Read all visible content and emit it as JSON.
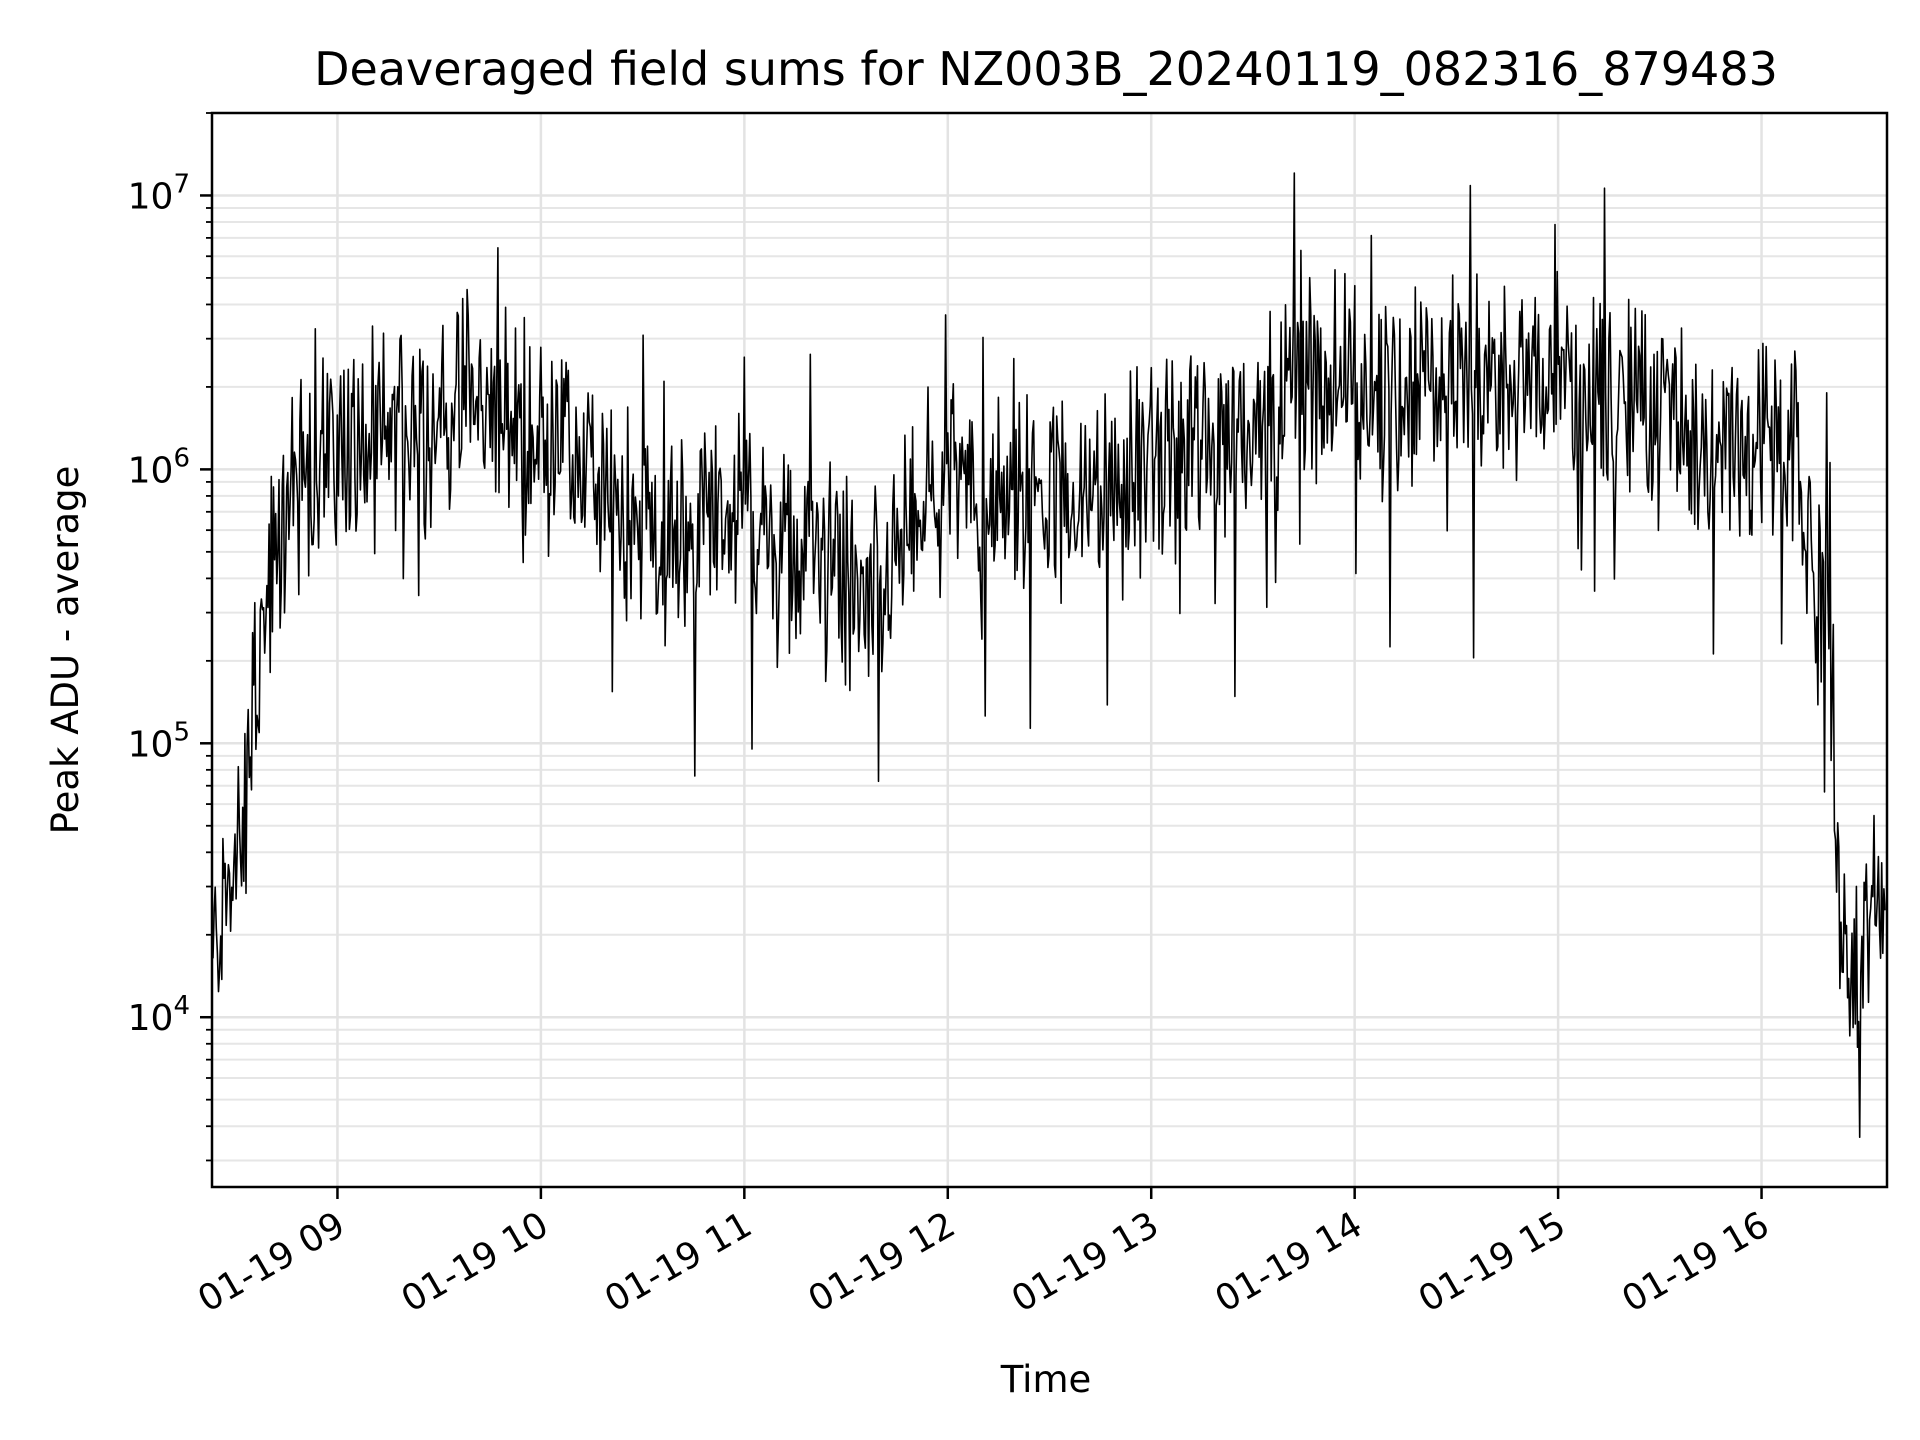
{
  "chart_data": {
    "type": "line",
    "title": "Deaveraged field sums for NZ003B_20240119_082316_879483",
    "xlabel": "Time",
    "ylabel": "Peak ADU - average",
    "y_scale": "log",
    "ylim": [
      2400,
      20000000
    ],
    "xlim": [
      "2024-01-19 08:23",
      "2024-01-19 16:37"
    ],
    "grid": "on (major and minor)",
    "line_color": "#000000",
    "x_ticks": [
      {
        "value": "2024-01-19 09:00",
        "label": "01-19 09"
      },
      {
        "value": "2024-01-19 10:00",
        "label": "01-19 10"
      },
      {
        "value": "2024-01-19 11:00",
        "label": "01-19 11"
      },
      {
        "value": "2024-01-19 12:00",
        "label": "01-19 12"
      },
      {
        "value": "2024-01-19 13:00",
        "label": "01-19 13"
      },
      {
        "value": "2024-01-19 14:00",
        "label": "01-19 14"
      },
      {
        "value": "2024-01-19 15:00",
        "label": "01-19 15"
      },
      {
        "value": "2024-01-19 16:00",
        "label": "01-19 16"
      }
    ],
    "y_ticks": [
      {
        "value": 10000,
        "base": "10",
        "exp": "4"
      },
      {
        "value": 100000,
        "base": "10",
        "exp": "5"
      },
      {
        "value": 1000000,
        "base": "10",
        "exp": "6"
      },
      {
        "value": 10000000,
        "base": "10",
        "exp": "7"
      }
    ],
    "series": [
      {
        "x": [
          "2024-01-19 08:23",
          "2024-01-19 08:26",
          "2024-01-19 08:29",
          "2024-01-19 08:32",
          "2024-01-19 08:35",
          "2024-01-19 08:38",
          "2024-01-19 08:41",
          "2024-01-19 08:44",
          "2024-01-19 08:47",
          "2024-01-19 08:50",
          "2024-01-19 08:53",
          "2024-01-19 08:56",
          "2024-01-19 09:00",
          "2024-01-19 09:10",
          "2024-01-19 09:20",
          "2024-01-19 09:30",
          "2024-01-19 09:35",
          "2024-01-19 09:40",
          "2024-01-19 09:50",
          "2024-01-19 10:00",
          "2024-01-19 10:10",
          "2024-01-19 10:20",
          "2024-01-19 10:30",
          "2024-01-19 10:40",
          "2024-01-19 10:50",
          "2024-01-19 11:00",
          "2024-01-19 11:10",
          "2024-01-19 11:20",
          "2024-01-19 11:30",
          "2024-01-19 11:35",
          "2024-01-19 11:40",
          "2024-01-19 11:50",
          "2024-01-19 12:00",
          "2024-01-19 12:10",
          "2024-01-19 12:20",
          "2024-01-19 12:30",
          "2024-01-19 12:40",
          "2024-01-19 12:50",
          "2024-01-19 13:00",
          "2024-01-19 13:10",
          "2024-01-19 13:20",
          "2024-01-19 13:30",
          "2024-01-19 13:40",
          "2024-01-19 13:50",
          "2024-01-19 14:00",
          "2024-01-19 14:10",
          "2024-01-19 14:20",
          "2024-01-19 14:30",
          "2024-01-19 14:40",
          "2024-01-19 14:50",
          "2024-01-19 15:00",
          "2024-01-19 15:10",
          "2024-01-19 15:20",
          "2024-01-19 15:30",
          "2024-01-19 15:40",
          "2024-01-19 15:50",
          "2024-01-19 16:00",
          "2024-01-19 16:05",
          "2024-01-19 16:10",
          "2024-01-19 16:15",
          "2024-01-19 16:20",
          "2024-01-19 16:24",
          "2024-01-19 16:27",
          "2024-01-19 16:30",
          "2024-01-19 16:33",
          "2024-01-19 16:37"
        ],
        "y": [
          15000,
          25000,
          30000,
          45000,
          120000,
          250000,
          400000,
          600000,
          800000,
          1000000,
          1100000,
          1200000,
          1200000,
          1300000,
          1400000,
          1600000,
          1800000,
          1700000,
          1500000,
          1300000,
          1000000,
          800000,
          600000,
          500000,
          650000,
          700000,
          500000,
          500000,
          350000,
          300000,
          400000,
          600000,
          800000,
          850000,
          800000,
          750000,
          800000,
          800000,
          1000000,
          1200000,
          1400000,
          1500000,
          2000000,
          2500000,
          2000000,
          1800000,
          2000000,
          2200000,
          2000000,
          2000000,
          2100000,
          2000000,
          1800000,
          1600000,
          1500000,
          1400000,
          1200000,
          1100000,
          1000000,
          400000,
          300000,
          15000,
          15000,
          25000,
          25000,
          15000
        ]
      }
    ]
  }
}
